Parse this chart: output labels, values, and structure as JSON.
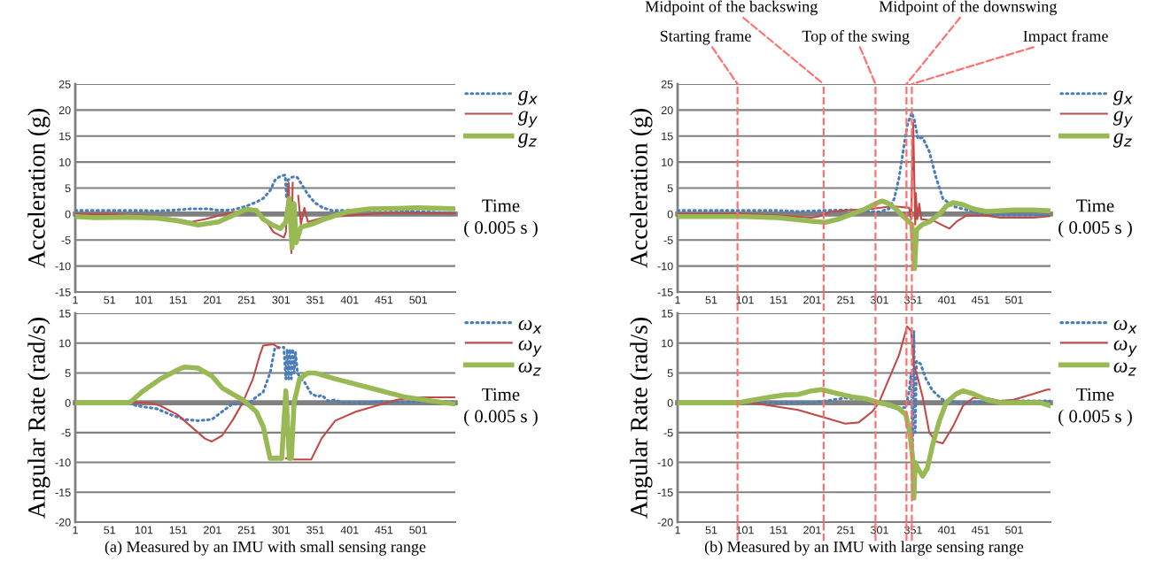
{
  "chart_data": [
    {
      "type": "line",
      "ylabel": "Acceleration (g)",
      "xlabel": "Time\n( 0.005 s )",
      "xlim": [
        1,
        555
      ],
      "xticks": [
        1,
        51,
        101,
        151,
        201,
        251,
        301,
        351,
        401,
        451,
        501
      ],
      "ylim": [
        -15,
        25
      ],
      "yticks": [
        -15,
        -10,
        -5,
        0,
        5,
        10,
        15,
        20,
        25
      ],
      "grid": "y",
      "legend": "top right",
      "marker": "none",
      "series": [
        {
          "name": "g$_{x}$",
          "color": "#4a7ebb",
          "line_style": "dotted",
          "x": [
            1,
            50,
            100,
            120,
            150,
            170,
            195,
            210,
            230,
            250,
            265,
            275,
            285,
            292,
            300,
            307,
            309,
            311,
            315,
            320,
            325,
            332,
            340,
            350,
            362,
            375,
            400,
            450,
            500,
            530,
            555
          ],
          "values": [
            0.7,
            0.7,
            0.7,
            0.6,
            0.8,
            1.0,
            1.0,
            0.7,
            0.8,
            1.5,
            2.3,
            3.0,
            4.5,
            6.5,
            7.3,
            7.5,
            3,
            6.5,
            7.0,
            7.2,
            7.0,
            5.5,
            3.8,
            2.2,
            1.2,
            0.7,
            0.7,
            0.8,
            0.5,
            0.3,
            0.1
          ]
        },
        {
          "name": "g$_{y}$",
          "color": "#be4b48",
          "line_style": "solid",
          "x": [
            1,
            50,
            100,
            150,
            170,
            190,
            210,
            230,
            250,
            265,
            280,
            290,
            305,
            308,
            312,
            316,
            318,
            322,
            326,
            330,
            335,
            340,
            360,
            380,
            400,
            450,
            500,
            555
          ],
          "values": [
            0,
            0,
            -0.3,
            -1,
            -1.5,
            -1,
            -0.3,
            0.3,
            0.8,
            0.5,
            -1.5,
            -3.5,
            -4.5,
            -3.5,
            6,
            -7.5,
            6,
            null,
            3.5,
            -2,
            1.2,
            -1.5,
            -0.8,
            -0.5,
            -0.3,
            0.2,
            0.2,
            0.1
          ]
        },
        {
          "name": "g$_{z}$",
          "color": "#98b954",
          "line_style": "solid",
          "x": [
            1,
            30,
            80,
            120,
            150,
            180,
            210,
            230,
            250,
            265,
            275,
            290,
            300,
            308,
            313,
            317,
            320,
            323,
            330,
            345,
            360,
            380,
            400,
            430,
            470,
            500,
            555
          ],
          "values": [
            -0.5,
            -0.7,
            -0.6,
            -0.8,
            -1.3,
            -2.1,
            -1.5,
            -0.3,
            0.9,
            0.7,
            -1,
            -2.2,
            -2.8,
            -1.5,
            3,
            -6.5,
            2,
            -5.5,
            -2.5,
            -2,
            -1.2,
            -0.3,
            0.5,
            1,
            1.1,
            1.2,
            1
          ]
        }
      ]
    },
    {
      "type": "line",
      "ylabel": "Angular Rate (rad/s)",
      "xlabel": "Time\n( 0.005 s )",
      "xlim": [
        1,
        555
      ],
      "xticks": [
        1,
        51,
        101,
        151,
        201,
        251,
        301,
        351,
        401,
        451,
        501
      ],
      "ylim": [
        -20,
        15
      ],
      "yticks": [
        -20,
        -15,
        -10,
        -5,
        0,
        5,
        10,
        15
      ],
      "grid": "y",
      "legend": "top right",
      "marker": "none",
      "annotations": [
        "(a) Measured by an IMU with small sensing range"
      ],
      "series": [
        {
          "name": "ω$_{x}$",
          "color": "#4a7ebb",
          "line_style": "dotted",
          "x": [
            1,
            80,
            90,
            120,
            140,
            160,
            180,
            200,
            215,
            230,
            250,
            255,
            265,
            275,
            285,
            292,
            305,
            308,
            310,
            312,
            314,
            316,
            318,
            320,
            322,
            325,
            330,
            335,
            345,
            355,
            360,
            370,
            380,
            390,
            420,
            450,
            470,
            500,
            555
          ],
          "values": [
            0,
            0,
            -0.5,
            -1,
            -2,
            -2.8,
            -3,
            -2.8,
            -1.5,
            -0.2,
            -0.3,
            0,
            1,
            1.8,
            5,
            9.2,
            9.3,
            4,
            9,
            4,
            9,
            4,
            9,
            5,
            8.5,
            5,
            4,
            3.5,
            1.5,
            1,
            1.3,
            0.3,
            0.5,
            0,
            0,
            0.2,
            0.1,
            0.2,
            0.2
          ]
        },
        {
          "name": "ω$_{y}$",
          "color": "#be4b48",
          "line_style": "solid",
          "x": [
            1,
            110,
            125,
            150,
            170,
            190,
            200,
            215,
            230,
            245,
            260,
            270,
            275,
            290,
            298,
            303,
            308,
            320,
            345,
            360,
            380,
            410,
            440,
            470,
            500,
            555
          ],
          "values": [
            0,
            0,
            -0.5,
            -2,
            -4,
            -6,
            -6.5,
            -5.5,
            -3,
            0,
            4,
            8,
            9.6,
            9.8,
            9.2,
            null,
            -9.3,
            -9.5,
            -9.5,
            -6,
            -3,
            -1.5,
            -0.5,
            0.5,
            0.9,
            0.9
          ]
        },
        {
          "name": "ω$_{z}$",
          "color": "#98b954",
          "line_style": "solid",
          "x": [
            1,
            80,
            85,
            100,
            125,
            150,
            160,
            180,
            200,
            215,
            230,
            245,
            255,
            265,
            275,
            285,
            302,
            308,
            313,
            316,
            320,
            328,
            340,
            350,
            380,
            430,
            480,
            540,
            555
          ],
          "values": [
            0,
            0,
            0.5,
            2,
            4,
            5.5,
            6,
            5.8,
            4.5,
            2.5,
            1.5,
            0.5,
            -0.5,
            -1.5,
            -4,
            -9.3,
            -9.3,
            2,
            -9.3,
            -9.3,
            0,
            4,
            5,
            5,
            4,
            2.5,
            1,
            0,
            -0.2
          ]
        }
      ]
    },
    {
      "type": "line",
      "ylabel": "Acceleration (g)",
      "xlabel": "Time\n( 0.005 s )",
      "xlim": [
        1,
        555
      ],
      "xticks": [
        1,
        51,
        101,
        151,
        201,
        251,
        301,
        351,
        401,
        451,
        501
      ],
      "ylim": [
        -15,
        25
      ],
      "yticks": [
        -15,
        -10,
        -5,
        0,
        5,
        10,
        15,
        20,
        25
      ],
      "grid": "y",
      "legend": "top right",
      "marker": "none",
      "ref_lines": [
        {
          "axis": "x",
          "value": 90,
          "label": "Starting frame",
          "color": "#ff7070",
          "line_style": "dashed"
        },
        {
          "axis": "x",
          "value": 218,
          "label": "Midpoint of the backswing",
          "color": "#ff7070",
          "line_style": "dashed"
        },
        {
          "axis": "x",
          "value": 295,
          "label": "Top of the swing",
          "color": "#ff7070",
          "line_style": "dashed"
        },
        {
          "axis": "x",
          "value": 341,
          "label": "Midpoint of the downswing",
          "color": "#ff7070",
          "line_style": "dashed"
        },
        {
          "axis": "x",
          "value": 349,
          "label": "Impact frame",
          "color": "#ff7070",
          "line_style": "dashed"
        }
      ],
      "series": [
        {
          "name": "g$_{x}$",
          "color": "#4a7ebb",
          "line_style": "dotted",
          "x": [
            1,
            150,
            180,
            220,
            260,
            290,
            300,
            315,
            323,
            330,
            336,
            342,
            349,
            353,
            358,
            365,
            375,
            385,
            395,
            410,
            430,
            450,
            480,
            555
          ],
          "values": [
            0.7,
            0.7,
            0.5,
            0.7,
            0.8,
            0.5,
            0.4,
            1,
            3,
            7,
            12,
            17,
            19.5,
            18,
            14.5,
            14.7,
            12,
            7,
            3,
            1.5,
            0.8,
            0.2,
            -0.2,
            -0.2
          ]
        },
        {
          "name": "g$_{y}$",
          "color": "#be4b48",
          "line_style": "solid",
          "x": [
            1,
            100,
            150,
            200,
            210,
            230,
            260,
            290,
            320,
            345,
            348,
            351,
            354,
            355,
            357,
            360,
            363,
            380,
            400,
            405,
            415,
            430,
            460,
            480,
            530,
            555
          ],
          "values": [
            0,
            0,
            -0.3,
            -0.7,
            -0.5,
            0.5,
            0.8,
            1,
            1.5,
            1.2,
            -1,
            17.5,
            -2,
            4,
            -1,
            2,
            -1,
            -1.2,
            -2.5,
            -2.8,
            -1.5,
            -0.3,
            -0.3,
            -0.7,
            -0.7,
            -0.4
          ]
        },
        {
          "name": "g$_{z}$",
          "color": "#98b954",
          "line_style": "solid",
          "x": [
            1,
            100,
            150,
            200,
            220,
            240,
            260,
            280,
            300,
            305,
            315,
            325,
            335,
            345,
            349,
            353,
            356,
            365,
            375,
            390,
            400,
            410,
            425,
            440,
            460,
            500,
            530,
            555
          ],
          "values": [
            -0.5,
            -0.5,
            -0.7,
            -1.4,
            -1.6,
            -1,
            0,
            1,
            2.3,
            2.5,
            2,
            1,
            -0.3,
            -1.5,
            -2,
            -10.5,
            -3,
            -2,
            -1.5,
            0,
            1.5,
            2.2,
            1.8,
            1,
            0.5,
            0.8,
            0.8,
            0.6
          ]
        }
      ]
    },
    {
      "type": "line",
      "ylabel": "Angular Rate (rad/s)",
      "xlabel": "Time\n( 0.005 s )",
      "xlim": [
        1,
        555
      ],
      "xticks": [
        1,
        51,
        101,
        151,
        201,
        251,
        301,
        351,
        401,
        451,
        501
      ],
      "ylim": [
        -20,
        15
      ],
      "yticks": [
        -20,
        -15,
        -10,
        -5,
        0,
        5,
        10,
        15
      ],
      "grid": "y",
      "legend": "top right",
      "marker": "none",
      "annotations": [
        "(b) Measured by an IMU with large sensing range"
      ],
      "ref_lines": [
        {
          "axis": "x",
          "value": 90,
          "color": "#ff7070",
          "line_style": "dashed"
        },
        {
          "axis": "x",
          "value": 218,
          "color": "#ff7070",
          "line_style": "dashed"
        },
        {
          "axis": "x",
          "value": 295,
          "color": "#ff7070",
          "line_style": "dashed"
        },
        {
          "axis": "x",
          "value": 341,
          "color": "#ff7070",
          "line_style": "dashed"
        },
        {
          "axis": "x",
          "value": 349,
          "color": "#ff7070",
          "line_style": "dashed"
        }
      ],
      "series": [
        {
          "name": "ω$_{x}$",
          "color": "#4a7ebb",
          "line_style": "dotted",
          "x": [
            1,
            200,
            220,
            250,
            280,
            300,
            320,
            340,
            345,
            348,
            350,
            352,
            354,
            356,
            362,
            370,
            380,
            395,
            420,
            460,
            500,
            555
          ],
          "values": [
            0,
            0,
            0.3,
            0.8,
            0.5,
            0,
            -0.8,
            -0.8,
            2,
            5,
            -8,
            12,
            -5,
            7,
            6.5,
            4,
            2,
            0.5,
            0,
            0.2,
            0.3,
            0.3
          ]
        },
        {
          "name": "ω$_{y}$",
          "color": "#be4b48",
          "line_style": "solid",
          "x": [
            1,
            110,
            140,
            180,
            220,
            250,
            270,
            290,
            300,
            315,
            330,
            342,
            348,
            352,
            356,
            365,
            375,
            385,
            395,
            410,
            425,
            440,
            460,
            480,
            500,
            530,
            550,
            555
          ],
          "values": [
            0,
            0,
            -0.5,
            -1.2,
            -2.5,
            -3.5,
            -3.3,
            -1.5,
            0,
            4,
            8,
            12.8,
            12,
            6,
            5,
            1,
            -5,
            -6.5,
            -6.8,
            -4,
            -0.5,
            0.8,
            0.8,
            0.3,
            0.5,
            1.5,
            2.2,
            2.2
          ]
        },
        {
          "name": "ω$_{z}$",
          "color": "#98b954",
          "line_style": "solid",
          "x": [
            1,
            90,
            110,
            140,
            160,
            180,
            200,
            215,
            240,
            260,
            280,
            300,
            315,
            330,
            340,
            346,
            350,
            352,
            354,
            358,
            365,
            372,
            380,
            390,
            400,
            415,
            425,
            440,
            460,
            480,
            540,
            555
          ],
          "values": [
            0,
            0,
            0.4,
            1,
            1.3,
            1.4,
            2,
            2.2,
            1.5,
            1,
            0.7,
            0,
            -0.3,
            -1,
            -2,
            -5,
            -9,
            -16,
            -10,
            -11,
            -12.3,
            -11,
            -7,
            -3,
            0,
            1.5,
            2,
            1.5,
            0.5,
            0,
            0,
            -0.5
          ]
        }
      ]
    }
  ]
}
